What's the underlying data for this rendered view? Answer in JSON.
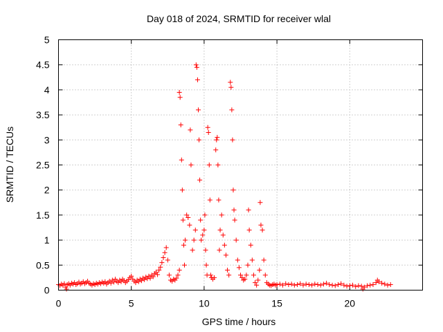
{
  "chart_data": {
    "type": "scatter",
    "title": "Day 018 of 2024, SRMTID for receiver wlal",
    "xlabel": "GPS time / hours",
    "ylabel": "SRMTID / TECUs",
    "xlim": [
      0,
      25
    ],
    "ylim": [
      0,
      5
    ],
    "xticks": [
      0,
      5,
      10,
      15,
      20
    ],
    "yticks": [
      0,
      0.5,
      1,
      1.5,
      2,
      2.5,
      3,
      3.5,
      4,
      4.5,
      5
    ],
    "xtick_labels": [
      "0",
      "5",
      "10",
      "15",
      "20"
    ],
    "ytick_labels": [
      "0",
      "0.5",
      "1",
      "1.5",
      "2",
      "2.5",
      "3",
      "3.5",
      "4",
      "4.5",
      "5"
    ],
    "grid": true,
    "marker": "plus",
    "color": "#ff0000",
    "series": [
      {
        "name": "SRMTID",
        "points": [
          [
            0.0,
            0.11
          ],
          [
            0.1,
            0.09
          ],
          [
            0.2,
            0.12
          ],
          [
            0.3,
            0.1
          ],
          [
            0.4,
            0.13
          ],
          [
            0.5,
            0.06
          ],
          [
            0.55,
            0.02
          ],
          [
            0.6,
            0.11
          ],
          [
            0.7,
            0.13
          ],
          [
            0.8,
            0.1
          ],
          [
            0.9,
            0.14
          ],
          [
            1.0,
            0.12
          ],
          [
            1.1,
            0.15
          ],
          [
            1.2,
            0.11
          ],
          [
            1.3,
            0.13
          ],
          [
            1.4,
            0.16
          ],
          [
            1.5,
            0.12
          ],
          [
            1.6,
            0.14
          ],
          [
            1.7,
            0.17
          ],
          [
            1.8,
            0.13
          ],
          [
            1.9,
            0.15
          ],
          [
            2.0,
            0.18
          ],
          [
            2.1,
            0.14
          ],
          [
            2.2,
            0.12
          ],
          [
            2.3,
            0.1
          ],
          [
            2.4,
            0.13
          ],
          [
            2.5,
            0.11
          ],
          [
            2.6,
            0.14
          ],
          [
            2.7,
            0.12
          ],
          [
            2.8,
            0.15
          ],
          [
            2.9,
            0.13
          ],
          [
            3.0,
            0.16
          ],
          [
            3.1,
            0.14
          ],
          [
            3.2,
            0.17
          ],
          [
            3.3,
            0.12
          ],
          [
            3.4,
            0.15
          ],
          [
            3.5,
            0.18
          ],
          [
            3.6,
            0.14
          ],
          [
            3.7,
            0.2
          ],
          [
            3.8,
            0.16
          ],
          [
            3.9,
            0.22
          ],
          [
            4.0,
            0.18
          ],
          [
            4.1,
            0.15
          ],
          [
            4.2,
            0.2
          ],
          [
            4.3,
            0.17
          ],
          [
            4.4,
            0.22
          ],
          [
            4.5,
            0.19
          ],
          [
            4.6,
            0.15
          ],
          [
            4.7,
            0.18
          ],
          [
            4.8,
            0.21
          ],
          [
            4.9,
            0.25
          ],
          [
            5.0,
            0.28
          ],
          [
            5.1,
            0.22
          ],
          [
            5.2,
            0.18
          ],
          [
            5.3,
            0.15
          ],
          [
            5.4,
            0.2
          ],
          [
            5.5,
            0.17
          ],
          [
            5.6,
            0.22
          ],
          [
            5.7,
            0.19
          ],
          [
            5.8,
            0.24
          ],
          [
            5.9,
            0.21
          ],
          [
            6.0,
            0.26
          ],
          [
            6.1,
            0.23
          ],
          [
            6.2,
            0.28
          ],
          [
            6.3,
            0.24
          ],
          [
            6.4,
            0.3
          ],
          [
            6.5,
            0.27
          ],
          [
            6.6,
            0.33
          ],
          [
            6.7,
            0.36
          ],
          [
            6.8,
            0.31
          ],
          [
            6.9,
            0.4
          ],
          [
            7.0,
            0.46
          ],
          [
            7.1,
            0.55
          ],
          [
            7.2,
            0.65
          ],
          [
            7.3,
            0.75
          ],
          [
            7.4,
            0.85
          ],
          [
            7.5,
            0.6
          ],
          [
            7.6,
            0.3
          ],
          [
            7.7,
            0.2
          ],
          [
            7.8,
            0.18
          ],
          [
            7.9,
            0.22
          ],
          [
            8.0,
            0.2
          ],
          [
            8.1,
            0.24
          ],
          [
            8.2,
            0.3
          ],
          [
            8.3,
            0.4
          ],
          [
            8.3,
            3.95
          ],
          [
            8.35,
            3.85
          ],
          [
            8.4,
            3.3
          ],
          [
            8.45,
            2.6
          ],
          [
            8.5,
            2.0
          ],
          [
            8.55,
            1.4
          ],
          [
            8.6,
            0.9
          ],
          [
            8.65,
            0.5
          ],
          [
            8.7,
            1.0
          ],
          [
            8.8,
            1.5
          ],
          [
            8.9,
            1.45
          ],
          [
            9.0,
            1.3
          ],
          [
            9.05,
            3.2
          ],
          [
            9.1,
            2.5
          ],
          [
            9.2,
            0.8
          ],
          [
            9.3,
            1.0
          ],
          [
            9.4,
            1.2
          ],
          [
            9.45,
            4.5
          ],
          [
            9.5,
            4.45
          ],
          [
            9.55,
            4.2
          ],
          [
            9.6,
            3.6
          ],
          [
            9.65,
            3.0
          ],
          [
            9.7,
            2.2
          ],
          [
            9.75,
            1.4
          ],
          [
            9.8,
            1.0
          ],
          [
            9.9,
            1.1
          ],
          [
            10.0,
            1.2
          ],
          [
            10.05,
            1.5
          ],
          [
            10.1,
            0.8
          ],
          [
            10.15,
            0.5
          ],
          [
            10.2,
            0.3
          ],
          [
            10.25,
            3.25
          ],
          [
            10.3,
            3.15
          ],
          [
            10.35,
            2.5
          ],
          [
            10.4,
            1.8
          ],
          [
            10.45,
            0.3
          ],
          [
            10.5,
            0.25
          ],
          [
            10.6,
            0.22
          ],
          [
            10.7,
            0.25
          ],
          [
            10.8,
            2.8
          ],
          [
            10.85,
            3.0
          ],
          [
            10.9,
            3.05
          ],
          [
            10.95,
            2.5
          ],
          [
            11.0,
            1.8
          ],
          [
            11.05,
            0.8
          ],
          [
            11.1,
            1.2
          ],
          [
            11.2,
            1.5
          ],
          [
            11.3,
            1.1
          ],
          [
            11.4,
            0.9
          ],
          [
            11.5,
            0.7
          ],
          [
            11.6,
            0.4
          ],
          [
            11.7,
            0.3
          ],
          [
            11.8,
            4.15
          ],
          [
            11.85,
            4.05
          ],
          [
            11.9,
            3.6
          ],
          [
            11.95,
            3.0
          ],
          [
            12.0,
            2.0
          ],
          [
            12.05,
            1.6
          ],
          [
            12.1,
            1.4
          ],
          [
            12.2,
            1.0
          ],
          [
            12.3,
            0.6
          ],
          [
            12.4,
            0.45
          ],
          [
            12.5,
            0.3
          ],
          [
            12.6,
            0.25
          ],
          [
            12.7,
            0.2
          ],
          [
            12.8,
            0.22
          ],
          [
            12.9,
            0.3
          ],
          [
            13.0,
            0.5
          ],
          [
            13.05,
            1.6
          ],
          [
            13.1,
            1.2
          ],
          [
            13.2,
            0.9
          ],
          [
            13.3,
            0.6
          ],
          [
            13.4,
            0.3
          ],
          [
            13.5,
            0.15
          ],
          [
            13.6,
            0.1
          ],
          [
            13.7,
            0.2
          ],
          [
            13.8,
            0.4
          ],
          [
            13.85,
            1.75
          ],
          [
            13.9,
            1.3
          ],
          [
            14.0,
            1.2
          ],
          [
            14.1,
            0.6
          ],
          [
            14.2,
            0.3
          ],
          [
            14.3,
            0.15
          ],
          [
            14.4,
            0.12
          ],
          [
            14.5,
            0.1
          ],
          [
            14.6,
            0.09
          ],
          [
            14.7,
            0.11
          ],
          [
            14.8,
            0.12
          ],
          [
            14.9,
            0.1
          ],
          [
            15.0,
            0.11
          ],
          [
            15.2,
            0.12
          ],
          [
            15.4,
            0.1
          ],
          [
            15.6,
            0.13
          ],
          [
            15.8,
            0.11
          ],
          [
            16.0,
            0.12
          ],
          [
            16.2,
            0.1
          ],
          [
            16.4,
            0.11
          ],
          [
            16.6,
            0.13
          ],
          [
            16.8,
            0.1
          ],
          [
            17.0,
            0.12
          ],
          [
            17.2,
            0.11
          ],
          [
            17.4,
            0.1
          ],
          [
            17.6,
            0.12
          ],
          [
            17.8,
            0.11
          ],
          [
            18.0,
            0.1
          ],
          [
            18.2,
            0.12
          ],
          [
            18.4,
            0.14
          ],
          [
            18.6,
            0.11
          ],
          [
            18.8,
            0.1
          ],
          [
            19.0,
            0.09
          ],
          [
            19.2,
            0.11
          ],
          [
            19.4,
            0.13
          ],
          [
            19.6,
            0.1
          ],
          [
            19.8,
            0.08
          ],
          [
            20.0,
            0.09
          ],
          [
            20.2,
            0.1
          ],
          [
            20.4,
            0.07
          ],
          [
            20.6,
            0.09
          ],
          [
            20.8,
            0.08
          ],
          [
            20.9,
            0.02
          ],
          [
            21.0,
            0.06
          ],
          [
            21.2,
            0.09
          ],
          [
            21.4,
            0.1
          ],
          [
            21.6,
            0.11
          ],
          [
            21.8,
            0.15
          ],
          [
            21.9,
            0.2
          ],
          [
            22.0,
            0.17
          ],
          [
            22.2,
            0.14
          ],
          [
            22.4,
            0.12
          ],
          [
            22.6,
            0.1
          ],
          [
            22.8,
            0.11
          ]
        ]
      }
    ]
  }
}
